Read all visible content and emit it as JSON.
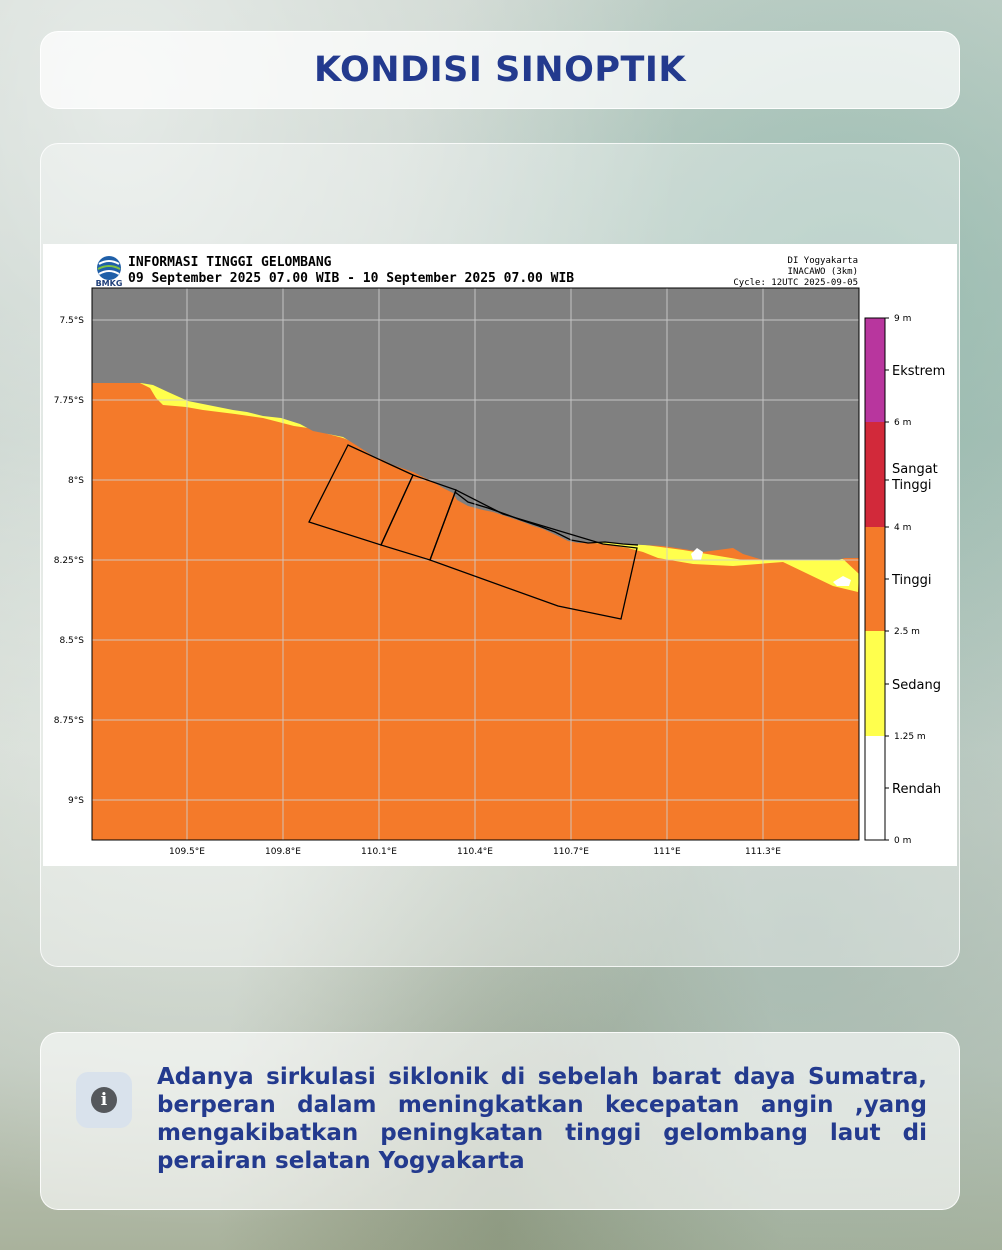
{
  "page_title": "KONDISI SINOPTIK",
  "map": {
    "header_title": "INFORMASI TINGGI GELOMBANG",
    "header_period": "09 September 2025 07.00 WIB - 10 September 2025 07.00 WIB",
    "header_region": "DI Yogyakarta",
    "header_model": "INACAWO (3km)",
    "header_cycle": "Cycle: 12UTC 2025-09-05",
    "logo_text": "BMKG",
    "lat_labels": [
      "7.5°S",
      "7.75°S",
      "8°S",
      "8.25°S",
      "8.5°S",
      "8.75°S",
      "9°S"
    ],
    "lon_labels": [
      "109.5°E",
      "109.8°E",
      "110.1°E",
      "110.4°E",
      "110.7°E",
      "111°E",
      "111.3°E"
    ],
    "legend": {
      "tick_labels": [
        "9 m",
        "6 m",
        "4 m",
        "2.5 m",
        "1.25 m",
        "0 m"
      ],
      "categories": [
        {
          "label": "Ekstrem",
          "color": "#b8369e"
        },
        {
          "label_lines": [
            "Sangat",
            "Tinggi"
          ],
          "color": "#d2293a"
        },
        {
          "label": "Tinggi",
          "color": "#f47a2a"
        },
        {
          "label": "Sedang",
          "color": "#ffff4d"
        },
        {
          "label": "Rendah",
          "color": "#ffffff"
        }
      ]
    },
    "colors": {
      "land": "#808080",
      "sea_high": "#f47a2a",
      "sea_moderate": "#ffff4d",
      "grid": "#d0d0d0"
    }
  },
  "info": {
    "icon": "info-icon",
    "icon_glyph": "i",
    "text": "Adanya sirkulasi siklonik di sebelah barat daya Sumatra, berperan dalam meningkatkan kecepatan angin ,yang mengakibatkan peningkatan tinggi gelombang laut di perairan selatan Yogyakarta"
  }
}
